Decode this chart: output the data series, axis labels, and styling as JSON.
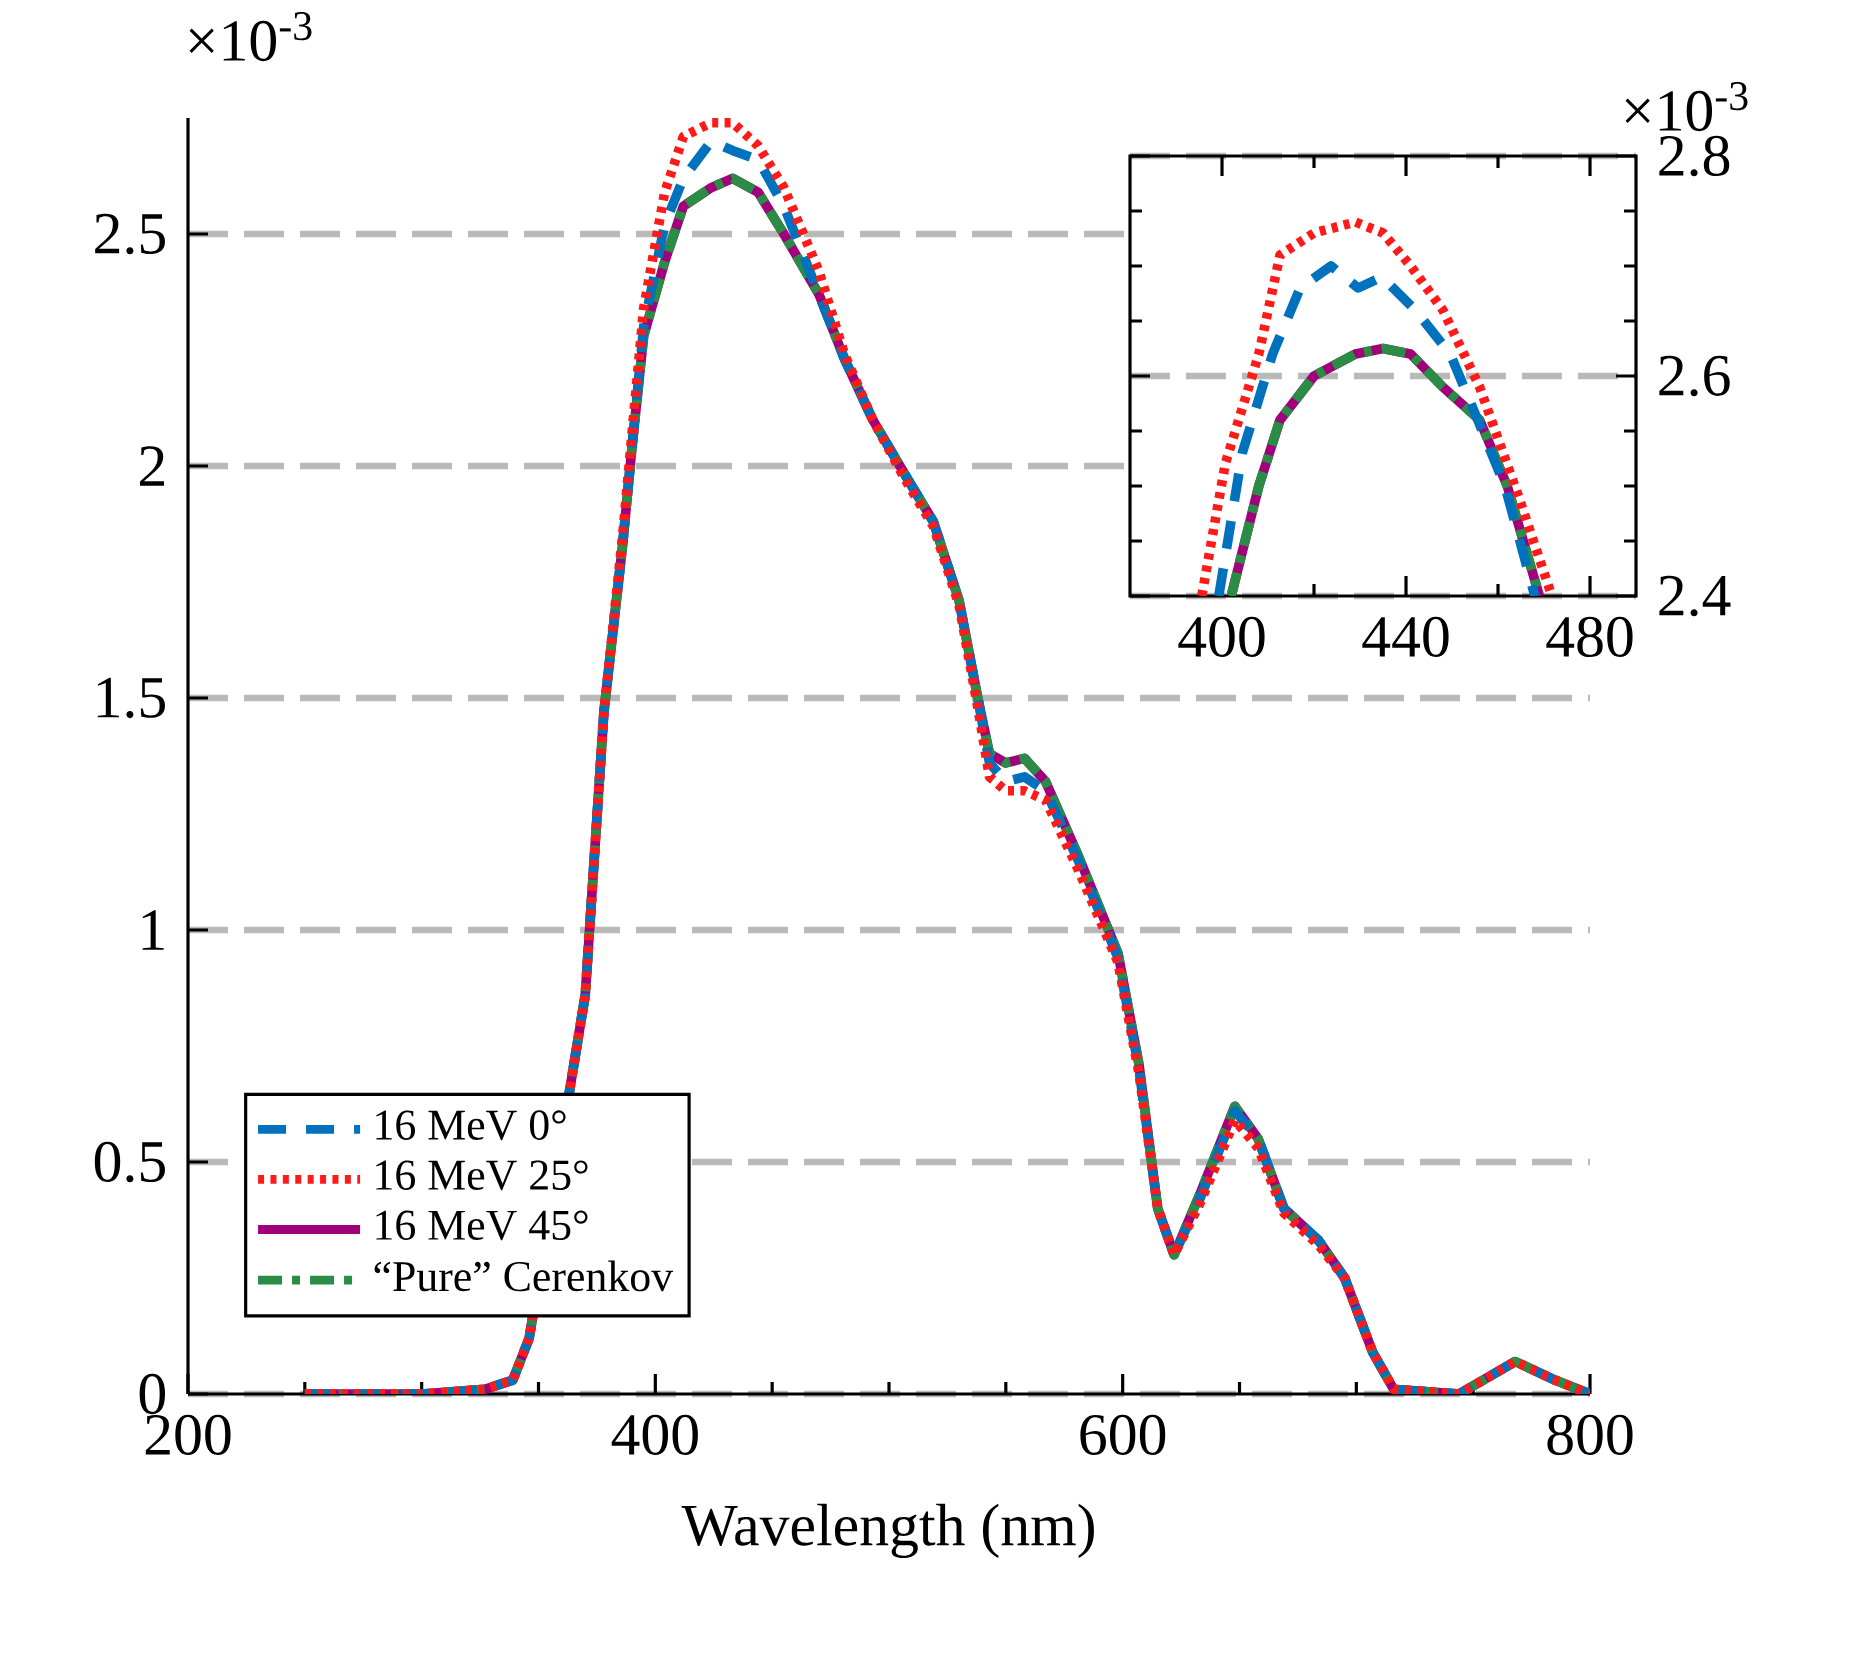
{
  "chart_data": [
    {
      "type": "line",
      "xlabel": "Wavelength (nm)",
      "annotations": [
        "×10$^{-3}$"
      ],
      "xlim": [
        200,
        800
      ],
      "ylim": [
        0,
        2.75
      ],
      "xticks": [
        200,
        {
          "value": 250,
          "label": null
        },
        {
          "value": 300,
          "label": null
        },
        {
          "value": 350,
          "label": null
        },
        400,
        {
          "value": 450,
          "label": null
        },
        {
          "value": 500,
          "label": null
        },
        {
          "value": 550,
          "label": null
        },
        600,
        {
          "value": 650,
          "label": null
        },
        {
          "value": 700,
          "label": null
        },
        {
          "value": 750,
          "label": null
        },
        800
      ],
      "yticks": [
        0,
        0.5,
        1,
        1.5,
        2,
        2.5
      ],
      "grid": "y",
      "legend": "bottom left",
      "x": [
        250,
        300,
        327,
        339,
        346,
        370,
        378,
        386,
        390,
        395,
        404,
        412,
        424,
        433,
        444,
        455,
        470,
        481,
        493,
        507,
        519,
        530,
        538,
        543,
        550,
        558,
        567,
        581,
        598,
        607,
        615,
        622,
        633,
        648,
        658,
        669,
        684,
        695,
        707,
        716,
        744,
        768,
        785,
        800
      ],
      "series": [
        {
          "name": "16 MeV 0°",
          "color": "#0072bd",
          "line_style": "dashed",
          "values": [
            0,
            0,
            0.01,
            0.03,
            0.12,
            0.86,
            1.47,
            1.83,
            2.04,
            2.3,
            2.52,
            2.62,
            2.7,
            2.68,
            2.66,
            2.56,
            2.37,
            2.23,
            2.1,
            1.98,
            1.88,
            1.71,
            1.5,
            1.36,
            1.32,
            1.33,
            1.3,
            1.15,
            0.94,
            0.7,
            0.4,
            0.3,
            0.42,
            0.61,
            0.55,
            0.4,
            0.33,
            0.25,
            0.09,
            0.01,
            0,
            0.07,
            0.03,
            0
          ]
        },
        {
          "name": "16 MeV 25°",
          "color": "#ff1a1a",
          "line_style": "dotted",
          "values": [
            0,
            0,
            0.01,
            0.03,
            0.12,
            0.86,
            1.47,
            1.85,
            2.07,
            2.34,
            2.59,
            2.71,
            2.74,
            2.74,
            2.69,
            2.6,
            2.42,
            2.24,
            2.1,
            1.97,
            1.87,
            1.7,
            1.48,
            1.33,
            1.3,
            1.3,
            1.28,
            1.13,
            0.93,
            0.69,
            0.4,
            0.3,
            0.41,
            0.59,
            0.53,
            0.39,
            0.32,
            0.25,
            0.09,
            0.01,
            0,
            0.07,
            0.03,
            0
          ]
        },
        {
          "name": "16 MeV 45°",
          "color": "#a0007a",
          "line_style": "solid",
          "values": [
            0,
            0,
            0.01,
            0.03,
            0.12,
            0.86,
            1.47,
            1.83,
            2.04,
            2.28,
            2.44,
            2.56,
            2.6,
            2.62,
            2.59,
            2.5,
            2.37,
            2.23,
            2.1,
            1.98,
            1.88,
            1.71,
            1.5,
            1.38,
            1.36,
            1.37,
            1.32,
            1.16,
            0.95,
            0.71,
            0.4,
            0.3,
            0.43,
            0.62,
            0.55,
            0.4,
            0.33,
            0.25,
            0.09,
            0.01,
            0,
            0.07,
            0.03,
            0
          ]
        },
        {
          "name": "“Pure” Cerenkov",
          "color": "#2a8c45",
          "line_style": "dashdot",
          "values": [
            0,
            0,
            0.01,
            0.03,
            0.12,
            0.86,
            1.47,
            1.83,
            2.04,
            2.28,
            2.44,
            2.56,
            2.6,
            2.62,
            2.59,
            2.5,
            2.37,
            2.23,
            2.1,
            1.98,
            1.88,
            1.71,
            1.5,
            1.38,
            1.36,
            1.37,
            1.32,
            1.16,
            0.95,
            0.71,
            0.4,
            0.3,
            0.43,
            0.62,
            0.55,
            0.4,
            0.33,
            0.25,
            0.09,
            0.01,
            0,
            0.07,
            0.03,
            0
          ]
        }
      ]
    },
    {
      "type": "line",
      "annotations": [
        "×10$^{-3}$"
      ],
      "xlim": [
        380,
        490
      ],
      "ylim": [
        2.4,
        2.8
      ],
      "xticks": [
        400,
        {
          "value": 420,
          "label": null
        },
        440,
        {
          "value": 460,
          "label": null
        },
        480
      ],
      "yticks": [
        2.4,
        {
          "value": 2.45,
          "label": null
        },
        {
          "value": 2.5,
          "label": null
        },
        {
          "value": 2.55,
          "label": null
        },
        2.6,
        {
          "value": 2.65,
          "label": null
        },
        {
          "value": 2.7,
          "label": null
        },
        {
          "value": 2.75,
          "label": null
        },
        2.8
      ],
      "grid": "y",
      "series": [
        {
          "color": "#0072bd",
          "line_style": "dashed",
          "x": [
            399.3,
            404.4,
            411,
            417,
            423.7,
            429.6,
            434.8,
            442,
            449.6,
            455.6,
            461.5,
            468
          ],
          "values": [
            2.4,
            2.53,
            2.62,
            2.68,
            2.7,
            2.68,
            2.69,
            2.66,
            2.62,
            2.56,
            2.5,
            2.4
          ]
        },
        {
          "color": "#ff1a1a",
          "line_style": "dotted",
          "x": [
            395.6,
            400.7,
            408,
            412.6,
            420,
            429,
            435,
            441,
            448,
            456,
            464.5,
            471.7
          ],
          "values": [
            2.4,
            2.52,
            2.62,
            2.71,
            2.73,
            2.74,
            2.73,
            2.7,
            2.66,
            2.59,
            2.49,
            2.4
          ]
        },
        {
          "color": "#a0007a",
          "line_style": "solid",
          "x": [
            402,
            408,
            412.6,
            420,
            429,
            435,
            441,
            448,
            456,
            462,
            469
          ],
          "values": [
            2.4,
            2.5,
            2.56,
            2.6,
            2.62,
            2.625,
            2.62,
            2.59,
            2.56,
            2.5,
            2.4
          ]
        },
        {
          "color": "#2a8c45",
          "line_style": "dashdot",
          "x": [
            402,
            408,
            412.6,
            420,
            429,
            435,
            441,
            448,
            456,
            462,
            469
          ],
          "values": [
            2.4,
            2.5,
            2.56,
            2.6,
            2.62,
            2.625,
            2.62,
            2.59,
            2.56,
            2.5,
            2.4
          ]
        }
      ]
    }
  ]
}
